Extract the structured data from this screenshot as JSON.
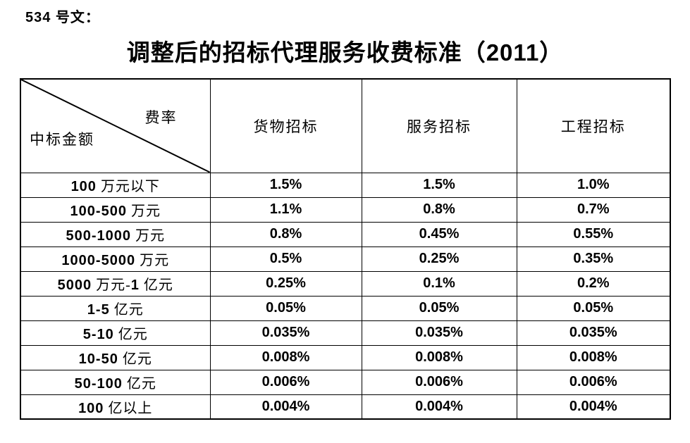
{
  "page": {
    "doc_ref": "534 号文：",
    "title": "调整后的招标代理服务收费标准（2011）"
  },
  "table": {
    "corner": {
      "top_right_label": "费率",
      "bottom_left_label": "中标金额"
    },
    "columns": [
      "货物招标",
      "服务招标",
      "工程招标"
    ],
    "rows": [
      {
        "label": "100 万元以下",
        "values": [
          "1.5%",
          "1.5%",
          "1.0%"
        ]
      },
      {
        "label": "100-500 万元",
        "values": [
          "1.1%",
          "0.8%",
          "0.7%"
        ]
      },
      {
        "label": "500-1000 万元",
        "values": [
          "0.8%",
          "0.45%",
          "0.55%"
        ]
      },
      {
        "label": "1000-5000 万元",
        "values": [
          "0.5%",
          "0.25%",
          "0.35%"
        ]
      },
      {
        "label": "5000 万元-1 亿元",
        "values": [
          "0.25%",
          "0.1%",
          "0.2%"
        ]
      },
      {
        "label": "1-5 亿元",
        "values": [
          "0.05%",
          "0.05%",
          "0.05%"
        ]
      },
      {
        "label": "5-10 亿元",
        "values": [
          "0.035%",
          "0.035%",
          "0.035%"
        ]
      },
      {
        "label": "10-50 亿元",
        "values": [
          "0.008%",
          "0.008%",
          "0.008%"
        ]
      },
      {
        "label": "50-100 亿元",
        "values": [
          "0.006%",
          "0.006%",
          "0.006%"
        ]
      },
      {
        "label": "100 亿以上",
        "values": [
          "0.004%",
          "0.004%",
          "0.004%"
        ]
      }
    ]
  }
}
